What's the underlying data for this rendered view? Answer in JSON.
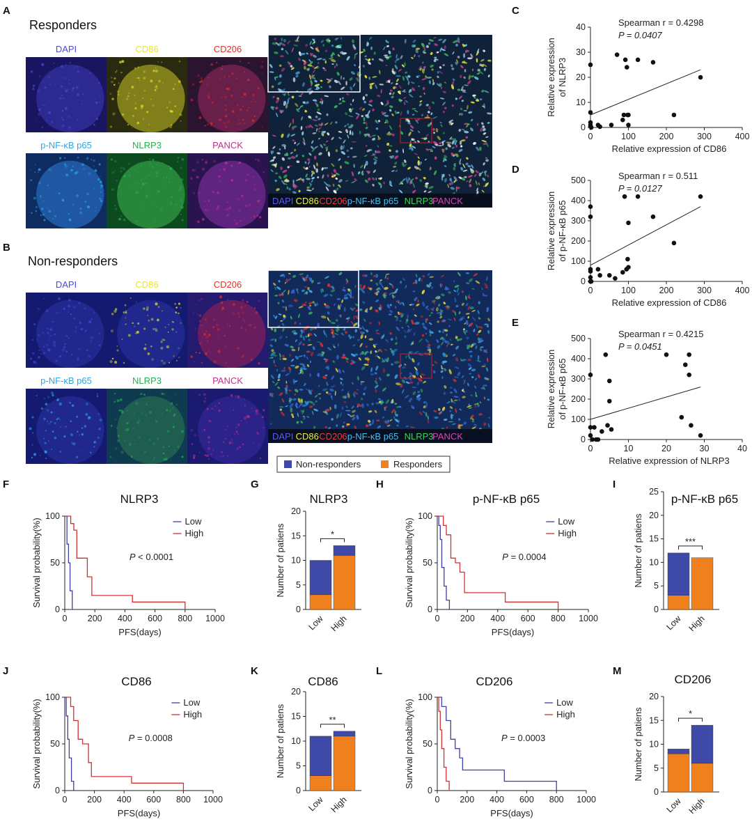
{
  "panel_letters": [
    "A",
    "B",
    "C",
    "D",
    "E",
    "F",
    "G",
    "H",
    "I",
    "J",
    "K",
    "L",
    "M"
  ],
  "microscopy": {
    "A": {
      "title": "Responders",
      "channels": [
        {
          "label": "DAPI",
          "color": "#4a4ad8",
          "bg": "#1a1560",
          "accent": "#3c3ab8"
        },
        {
          "label": "CD86",
          "color": "#e6e62a",
          "bg": "#2a2a10",
          "accent": "#c8c424"
        },
        {
          "label": "CD206",
          "color": "#e0302a",
          "bg": "#2a1430",
          "accent": "#9a2860"
        },
        {
          "label": "p-NF-κB p65",
          "color": "#2aa8e8",
          "bg": "#0e2c60",
          "accent": "#2e7cd8"
        },
        {
          "label": "NLRP3",
          "color": "#22b050",
          "bg": "#0e4a20",
          "accent": "#3cb850"
        },
        {
          "label": "PANCK",
          "color": "#c0308c",
          "bg": "#2a1450",
          "accent": "#8a30a8"
        }
      ],
      "merge_legend": [
        {
          "text": "DAPI",
          "color": "#5a5af0"
        },
        {
          "text": "CD86",
          "color": "#f0f03a"
        },
        {
          "text": "CD206",
          "color": "#f03a3a"
        },
        {
          "text": "p-NF-κB p65",
          "color": "#40c0f0"
        },
        {
          "text": "NLRP3",
          "color": "#40d060"
        },
        {
          "text": "PANCK",
          "color": "#e040b0"
        }
      ]
    },
    "B": {
      "title": "Non-responders",
      "channels": [
        {
          "label": "DAPI",
          "color": "#4a4ad8",
          "bg": "#141a70",
          "accent": "#2a34a8"
        },
        {
          "label": "CD86",
          "color": "#e6e62a",
          "bg": "#141a70",
          "accent": "#2a34a8"
        },
        {
          "label": "CD206",
          "color": "#e0302a",
          "bg": "#241a70",
          "accent": "#a02050"
        },
        {
          "label": "p-NF-κB p65",
          "color": "#2aa8e8",
          "bg": "#141a70",
          "accent": "#2a34a8"
        },
        {
          "label": "NLRP3",
          "color": "#22b050",
          "bg": "#103a50",
          "accent": "#2a7a50"
        },
        {
          "label": "PANCK",
          "color": "#c0308c",
          "bg": "#1a1a70",
          "accent": "#3a2aa0"
        }
      ],
      "merge_legend": [
        {
          "text": "DAPI",
          "color": "#5a5af0"
        },
        {
          "text": "CD86",
          "color": "#f0f03a"
        },
        {
          "text": "CD206",
          "color": "#f03a3a"
        },
        {
          "text": "p-NF-κB p65",
          "color": "#40c0f0"
        },
        {
          "text": "NLRP3",
          "color": "#40d060"
        },
        {
          "text": "PANCK",
          "color": "#e040b0"
        }
      ]
    }
  },
  "group_legend": {
    "items": [
      {
        "label": "Non-responders",
        "color": "#3f4aa8"
      },
      {
        "label": "Responders",
        "color": "#f0801e"
      }
    ]
  },
  "chart_data": [
    {
      "panel": "C",
      "type": "scatter",
      "xlabel": "Relative expression of  CD86",
      "ylabel_lines": [
        "Relative expression",
        "of  NLRP3"
      ],
      "xlim": [
        0,
        400
      ],
      "ylim": [
        0,
        40
      ],
      "xticks": [
        0,
        100,
        200,
        300,
        400
      ],
      "yticks": [
        0,
        10,
        20,
        30,
        40
      ],
      "annotation": [
        "Spearman r = 0.4298",
        "P = 0.0407"
      ],
      "x": [
        0,
        0,
        0,
        0,
        0,
        2,
        20,
        25,
        55,
        70,
        85,
        88,
        92,
        96,
        98,
        100,
        100,
        125,
        165,
        220,
        290
      ],
      "y": [
        25,
        6,
        2,
        1,
        0.5,
        0,
        1,
        0.3,
        1,
        29,
        3,
        5,
        27,
        24,
        5,
        5,
        1,
        27,
        26,
        5,
        20
      ],
      "fit": [
        [
          0,
          5
        ],
        [
          290,
          23
        ]
      ]
    },
    {
      "panel": "D",
      "type": "scatter",
      "xlabel": "Relative expression of  CD86",
      "ylabel_lines": [
        "Relative expression",
        "of p-NF-κB p65"
      ],
      "xlim": [
        0,
        400
      ],
      "ylim": [
        0,
        500
      ],
      "xticks": [
        0,
        100,
        200,
        300,
        400
      ],
      "yticks": [
        0,
        100,
        200,
        300,
        400,
        500
      ],
      "annotation": [
        "Spearman r = 0.511",
        "P = 0.0127"
      ],
      "x": [
        0,
        0,
        0,
        0,
        0,
        0,
        2,
        20,
        25,
        50,
        65,
        85,
        90,
        95,
        98,
        100,
        100,
        125,
        165,
        220,
        290
      ],
      "y": [
        370,
        320,
        60,
        50,
        20,
        0,
        0,
        60,
        30,
        30,
        15,
        45,
        420,
        60,
        110,
        290,
        70,
        420,
        320,
        190,
        420
      ],
      "fit": [
        [
          0,
          80
        ],
        [
          290,
          370
        ]
      ]
    },
    {
      "panel": "E",
      "type": "scatter",
      "xlabel": "Relative expression of  NLRP3",
      "ylabel_lines": [
        "Relative expression",
        "of p-NF-κB p65"
      ],
      "xlim": [
        0,
        40
      ],
      "ylim": [
        0,
        500
      ],
      "xticks": [
        0,
        10,
        20,
        30,
        40
      ],
      "yticks": [
        0,
        100,
        200,
        300,
        400,
        500
      ],
      "annotation": [
        "Spearman r = 0.4215",
        "P = 0.0451"
      ],
      "x": [
        0,
        0,
        0,
        0.5,
        1,
        1.5,
        2,
        3,
        4,
        4.5,
        5,
        5,
        5.5,
        20,
        24,
        25,
        26,
        26,
        26.5,
        29
      ],
      "y": [
        320,
        60,
        20,
        0,
        60,
        0,
        0,
        40,
        420,
        70,
        290,
        190,
        50,
        420,
        110,
        370,
        320,
        420,
        70,
        20
      ],
      "fit": [
        [
          0,
          100
        ],
        [
          29,
          260
        ]
      ]
    },
    {
      "panel": "F",
      "type": "line",
      "subtype": "kaplan-meier",
      "title": "NLRP3",
      "xlabel": "PFS(days)",
      "ylabel": "Survival probability(%)",
      "xlim": [
        0,
        1000
      ],
      "ylim": [
        0,
        100
      ],
      "xticks": [
        0,
        200,
        400,
        600,
        800,
        1000
      ],
      "yticks": [
        0,
        50,
        100
      ],
      "stat": "P < 0.0001",
      "series": [
        {
          "name": "Low",
          "color": "#3f3fa0",
          "x": [
            0,
            15,
            15,
            25,
            25,
            35,
            35,
            50,
            50
          ],
          "y": [
            100,
            100,
            70,
            70,
            50,
            50,
            20,
            20,
            0
          ]
        },
        {
          "name": "High",
          "color": "#d03030",
          "x": [
            0,
            40,
            40,
            60,
            60,
            80,
            80,
            110,
            110,
            150,
            150,
            180,
            180,
            450,
            450,
            800,
            800
          ],
          "y": [
            100,
            100,
            92,
            92,
            85,
            85,
            55,
            55,
            55,
            55,
            35,
            35,
            15,
            15,
            8,
            8,
            0
          ]
        }
      ]
    },
    {
      "panel": "G",
      "type": "bar",
      "subtype": "stacked",
      "title": "NLRP3",
      "ylabel": "Number of patiens",
      "categories": [
        "Low",
        "High"
      ],
      "ylim": [
        0,
        20
      ],
      "yticks": [
        0,
        5,
        10,
        15,
        20
      ],
      "series": [
        {
          "name": "Responders",
          "color": "#f0801e",
          "values": [
            3,
            11
          ]
        },
        {
          "name": "Non-responders",
          "color": "#3f4aa8",
          "values": [
            7,
            2
          ]
        }
      ],
      "significance": "*"
    },
    {
      "panel": "H",
      "type": "line",
      "subtype": "kaplan-meier",
      "title": "p-NF-κB p65",
      "xlabel": "PFS(days)",
      "ylabel": "Survival probability(%)",
      "xlim": [
        0,
        1000
      ],
      "ylim": [
        0,
        100
      ],
      "xticks": [
        0,
        200,
        400,
        600,
        800,
        1000
      ],
      "yticks": [
        0,
        50,
        100
      ],
      "stat": "P = 0.0004",
      "series": [
        {
          "name": "Low",
          "color": "#3f3fa0",
          "x": [
            0,
            10,
            10,
            20,
            20,
            30,
            30,
            45,
            45,
            60,
            60,
            80,
            80
          ],
          "y": [
            100,
            100,
            90,
            90,
            75,
            75,
            45,
            45,
            25,
            25,
            10,
            10,
            0
          ]
        },
        {
          "name": "High",
          "color": "#d03030",
          "x": [
            0,
            40,
            40,
            60,
            60,
            90,
            90,
            120,
            120,
            150,
            150,
            180,
            180,
            450,
            450,
            800,
            800
          ],
          "y": [
            100,
            100,
            90,
            90,
            80,
            80,
            55,
            55,
            50,
            50,
            40,
            40,
            18,
            18,
            8,
            8,
            0
          ]
        }
      ]
    },
    {
      "panel": "I",
      "type": "bar",
      "subtype": "stacked",
      "title": "p-NF-κB p65",
      "ylabel": "Number of patiens",
      "categories": [
        "Low",
        "High"
      ],
      "ylim": [
        0,
        25
      ],
      "yticks": [
        0,
        5,
        10,
        15,
        20,
        25
      ],
      "series": [
        {
          "name": "Responders",
          "color": "#f0801e",
          "values": [
            3,
            11
          ]
        },
        {
          "name": "Non-responders",
          "color": "#3f4aa8",
          "values": [
            9,
            0
          ]
        }
      ],
      "significance": "***"
    },
    {
      "panel": "J",
      "type": "line",
      "subtype": "kaplan-meier",
      "title": "CD86",
      "xlabel": "PFS(days)",
      "ylabel": "Survival probability(%)",
      "xlim": [
        0,
        1000
      ],
      "ylim": [
        0,
        100
      ],
      "xticks": [
        0,
        200,
        400,
        600,
        800,
        1000
      ],
      "yticks": [
        0,
        50,
        100
      ],
      "stat": "P = 0.0008",
      "series": [
        {
          "name": "Low",
          "color": "#3f3fa0",
          "x": [
            0,
            10,
            10,
            20,
            20,
            30,
            30,
            45,
            45,
            60,
            60
          ],
          "y": [
            100,
            100,
            80,
            80,
            55,
            55,
            35,
            35,
            10,
            10,
            0
          ]
        },
        {
          "name": "High",
          "color": "#d03030",
          "x": [
            0,
            40,
            40,
            60,
            60,
            90,
            90,
            120,
            120,
            160,
            160,
            180,
            180,
            450,
            450,
            800,
            800
          ],
          "y": [
            100,
            100,
            90,
            90,
            75,
            75,
            55,
            55,
            50,
            50,
            30,
            30,
            15,
            15,
            8,
            8,
            0
          ]
        }
      ]
    },
    {
      "panel": "K",
      "type": "bar",
      "subtype": "stacked",
      "title": "CD86",
      "ylabel": "Number of patiens",
      "categories": [
        "Low",
        "High"
      ],
      "ylim": [
        0,
        20
      ],
      "yticks": [
        0,
        5,
        10,
        15,
        20
      ],
      "series": [
        {
          "name": "Responders",
          "color": "#f0801e",
          "values": [
            3,
            11
          ]
        },
        {
          "name": "Non-responders",
          "color": "#3f4aa8",
          "values": [
            8,
            1
          ]
        }
      ],
      "significance": "**"
    },
    {
      "panel": "L",
      "type": "line",
      "subtype": "kaplan-meier",
      "title": "CD206",
      "xlabel": "PFS(days)",
      "ylabel": "Survival probability(%)",
      "xlim": [
        0,
        1000
      ],
      "ylim": [
        0,
        100
      ],
      "xticks": [
        0,
        200,
        400,
        600,
        800,
        1000
      ],
      "yticks": [
        0,
        50,
        100
      ],
      "stat": "P = 0.0003",
      "series": [
        {
          "name": "Low",
          "color": "#3f3fa0",
          "x": [
            0,
            30,
            30,
            60,
            60,
            90,
            90,
            120,
            120,
            150,
            150,
            170,
            170,
            450,
            450,
            800,
            800
          ],
          "y": [
            100,
            100,
            90,
            90,
            75,
            75,
            55,
            55,
            45,
            45,
            35,
            35,
            22,
            22,
            10,
            10,
            0
          ]
        },
        {
          "name": "High",
          "color": "#d03030",
          "x": [
            0,
            10,
            10,
            20,
            20,
            30,
            30,
            45,
            45,
            60,
            60,
            80,
            80
          ],
          "y": [
            100,
            100,
            85,
            85,
            65,
            65,
            45,
            45,
            25,
            25,
            10,
            10,
            0
          ]
        }
      ]
    },
    {
      "panel": "M",
      "type": "bar",
      "subtype": "stacked",
      "title": "CD206",
      "ylabel": "Number of patiens",
      "categories": [
        "Low",
        "High"
      ],
      "ylim": [
        0,
        20
      ],
      "yticks": [
        0,
        5,
        10,
        15,
        20
      ],
      "series": [
        {
          "name": "Responders",
          "color": "#f0801e",
          "values": [
            8,
            6
          ]
        },
        {
          "name": "Non-responders",
          "color": "#3f4aa8",
          "values": [
            1,
            8
          ]
        }
      ],
      "significance": "*"
    }
  ]
}
